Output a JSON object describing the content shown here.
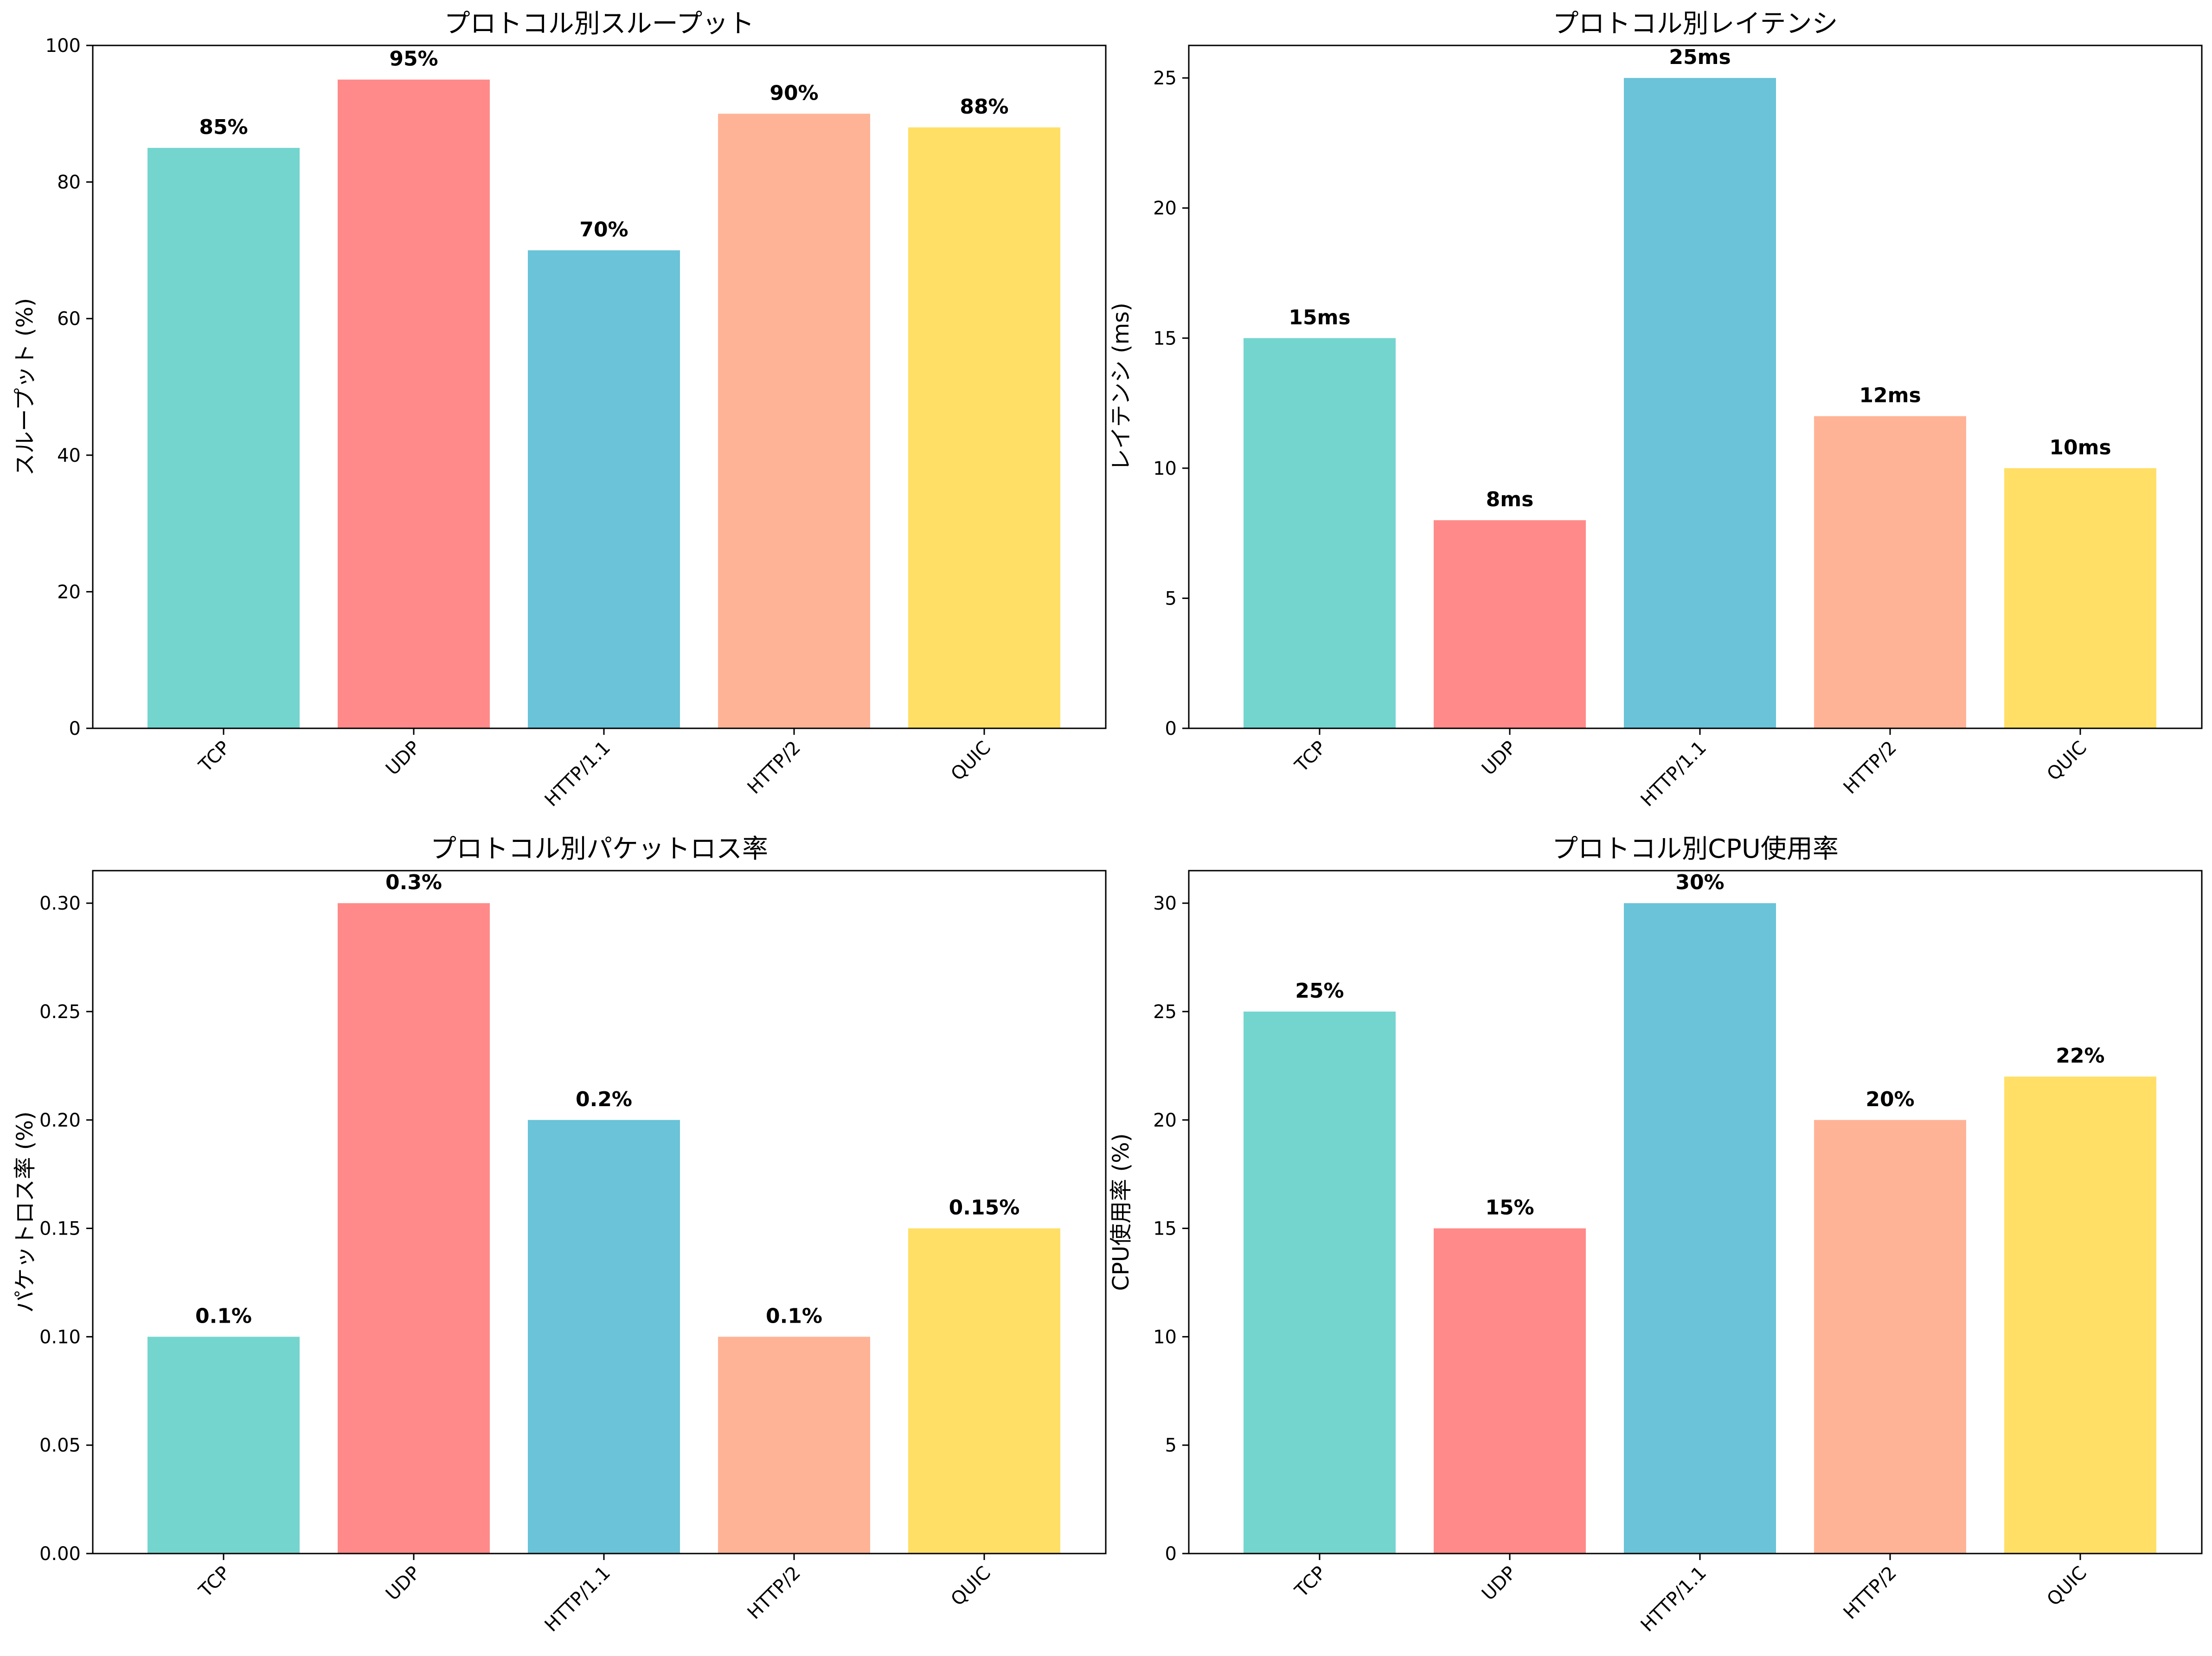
{
  "colors": [
    "#74d5cf",
    "#ff8a89",
    "#6ac3d8",
    "#ffb396",
    "#ffdf66"
  ],
  "chart_data": [
    {
      "type": "bar",
      "title": "プロトコル別スループット",
      "xlabel": "",
      "ylabel": "スループット (%)",
      "categories": [
        "TCP",
        "UDP",
        "HTTP/1.1",
        "HTTP/2",
        "QUIC"
      ],
      "values": [
        85,
        95,
        70,
        90,
        88
      ],
      "value_labels": [
        "85%",
        "95%",
        "70%",
        "90%",
        "88%"
      ],
      "ylim": [
        0,
        100
      ],
      "yticks": [
        0,
        20,
        40,
        60,
        80,
        100
      ],
      "ytick_labels": [
        "0",
        "20",
        "40",
        "60",
        "80",
        "100"
      ],
      "grid": false
    },
    {
      "type": "bar",
      "title": "プロトコル別レイテンシ",
      "xlabel": "",
      "ylabel": "レイテンシ (ms)",
      "categories": [
        "TCP",
        "UDP",
        "HTTP/1.1",
        "HTTP/2",
        "QUIC"
      ],
      "values": [
        15,
        8,
        25,
        12,
        10
      ],
      "value_labels": [
        "15ms",
        "8ms",
        "25ms",
        "12ms",
        "10ms"
      ],
      "ylim": [
        0,
        26.25
      ],
      "yticks": [
        0,
        5,
        10,
        15,
        20,
        25
      ],
      "ytick_labels": [
        "0",
        "5",
        "10",
        "15",
        "20",
        "25"
      ],
      "grid": false
    },
    {
      "type": "bar",
      "title": "プロトコル別パケットロス率",
      "xlabel": "",
      "ylabel": "パケットロス率 (%)",
      "categories": [
        "TCP",
        "UDP",
        "HTTP/1.1",
        "HTTP/2",
        "QUIC"
      ],
      "values": [
        0.1,
        0.3,
        0.2,
        0.1,
        0.15
      ],
      "value_labels": [
        "0.1%",
        "0.3%",
        "0.2%",
        "0.1%",
        "0.15%"
      ],
      "ylim": [
        0,
        0.315
      ],
      "yticks": [
        0,
        0.05,
        0.1,
        0.15,
        0.2,
        0.25,
        0.3
      ],
      "ytick_labels": [
        "0.00",
        "0.05",
        "0.10",
        "0.15",
        "0.20",
        "0.25",
        "0.30"
      ],
      "grid": false
    },
    {
      "type": "bar",
      "title": "プロトコル別CPU使用率",
      "xlabel": "",
      "ylabel": "CPU使用率 (%)",
      "categories": [
        "TCP",
        "UDP",
        "HTTP/1.1",
        "HTTP/2",
        "QUIC"
      ],
      "values": [
        25,
        15,
        30,
        20,
        22
      ],
      "value_labels": [
        "25%",
        "15%",
        "30%",
        "20%",
        "22%"
      ],
      "ylim": [
        0,
        31.5
      ],
      "yticks": [
        0,
        5,
        10,
        15,
        20,
        25,
        30
      ],
      "ytick_labels": [
        "0",
        "5",
        "10",
        "15",
        "20",
        "25",
        "30"
      ],
      "grid": false
    }
  ]
}
